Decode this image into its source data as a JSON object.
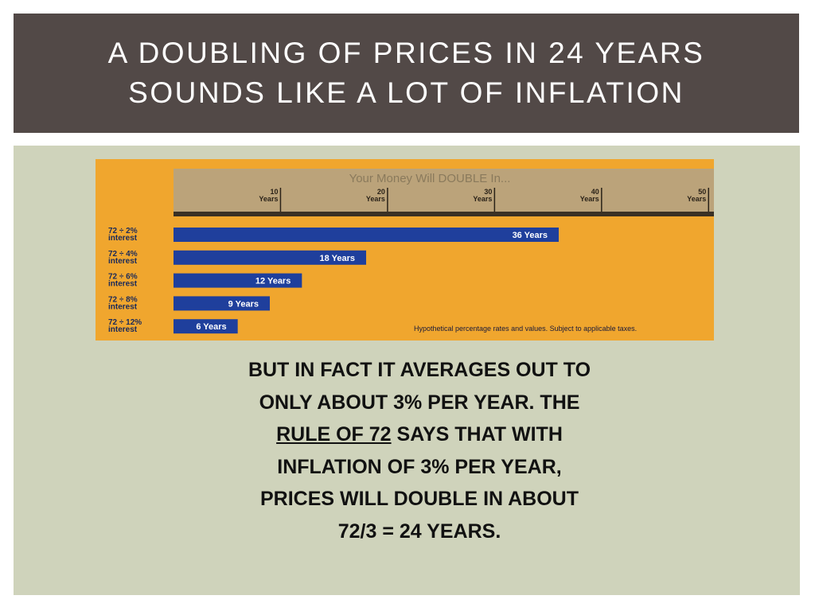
{
  "title": [
    "A DOUBLING OF PRICES IN 24 YEARS",
    "SOUNDS LIKE A LOT OF INFLATION"
  ],
  "chart_data": {
    "type": "bar",
    "orientation": "horizontal",
    "axis_title": "Your Money Will DOUBLE In...",
    "categories": [
      "72 ÷ 2%",
      "72 ÷ 4%",
      "72 ÷ 6%",
      "72 ÷ 8%",
      "72 ÷ 12%"
    ],
    "category_suffix": "interest",
    "values": [
      36,
      18,
      12,
      9,
      6
    ],
    "value_labels": [
      "36 Years",
      "18 Years",
      "12 Years",
      "9 Years",
      "6 Years"
    ],
    "color": "#1f3f9c",
    "xlim": [
      0,
      50.5
    ],
    "xticks": [
      10,
      20,
      30,
      40,
      50
    ],
    "xtick_unit": "Years",
    "footnote": "Hypothetical percentage rates and values. Subject to applicable taxes."
  },
  "body": [
    "BUT IN FACT IT AVERAGES OUT TO ONLY ABOUT 3% PER YEAR.  THE ",
    "RULE OF 72",
    " SAYS THAT WITH INFLATION OF 3% PER YEAR, PRICES WILL DOUBLE IN ABOUT 72/3 = 24 YEARS."
  ]
}
